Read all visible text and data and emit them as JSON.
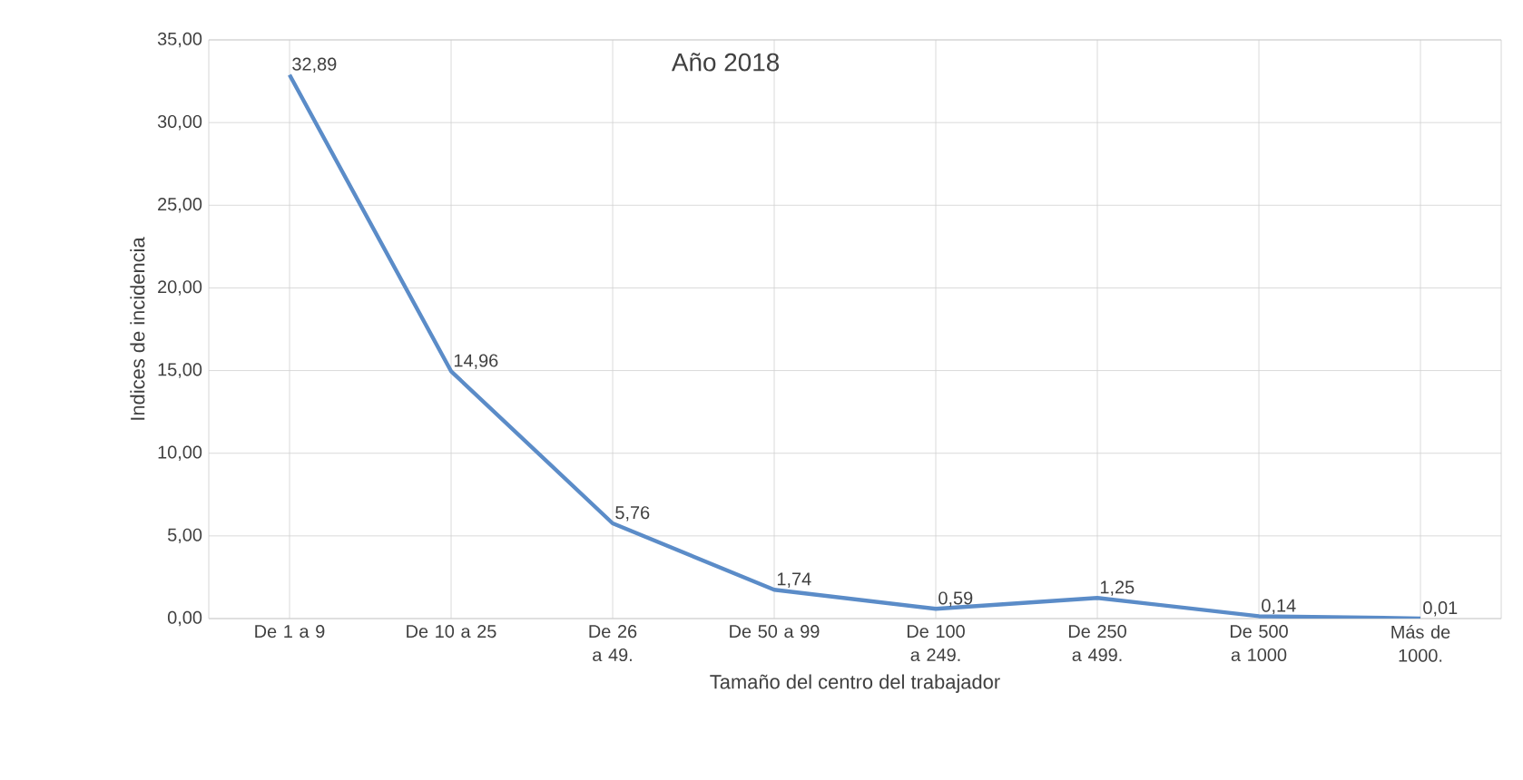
{
  "chart_data": {
    "type": "line",
    "title": "Año 2018",
    "xlabel": "Tamaño del centro del  trabajador",
    "ylabel": "Indices de incidencia",
    "categories": [
      "De 1 a 9",
      "De 10 a 25",
      "De 26 a 49.",
      "De 50 a 99",
      "De 100 a 249.",
      "De 250 a 499.",
      "De 500 a 1000",
      "Más de 1000."
    ],
    "series": [
      {
        "color": "#5b8cc8",
        "values": [
          32.89,
          14.96,
          5.76,
          1.74,
          0.59,
          1.25,
          0.14,
          0.01
        ],
        "value_labels": [
          "32,89",
          "14,96",
          "5,76",
          "1,74",
          "0,59",
          "1,25",
          "0,14",
          "0,01"
        ]
      }
    ],
    "ylim": [
      0,
      35
    ],
    "yticks": [
      {
        "value": 0,
        "label": "0,00"
      },
      {
        "value": 5,
        "label": "5,00"
      },
      {
        "value": 10,
        "label": "10,00"
      },
      {
        "value": 15,
        "label": "15,00"
      },
      {
        "value": 20,
        "label": "20,00"
      },
      {
        "value": 25,
        "label": "25,00"
      },
      {
        "value": 30,
        "label": "30,00"
      },
      {
        "value": 35,
        "label": "35,00"
      }
    ],
    "grid": true,
    "marker": "none",
    "line_style": "solid"
  }
}
